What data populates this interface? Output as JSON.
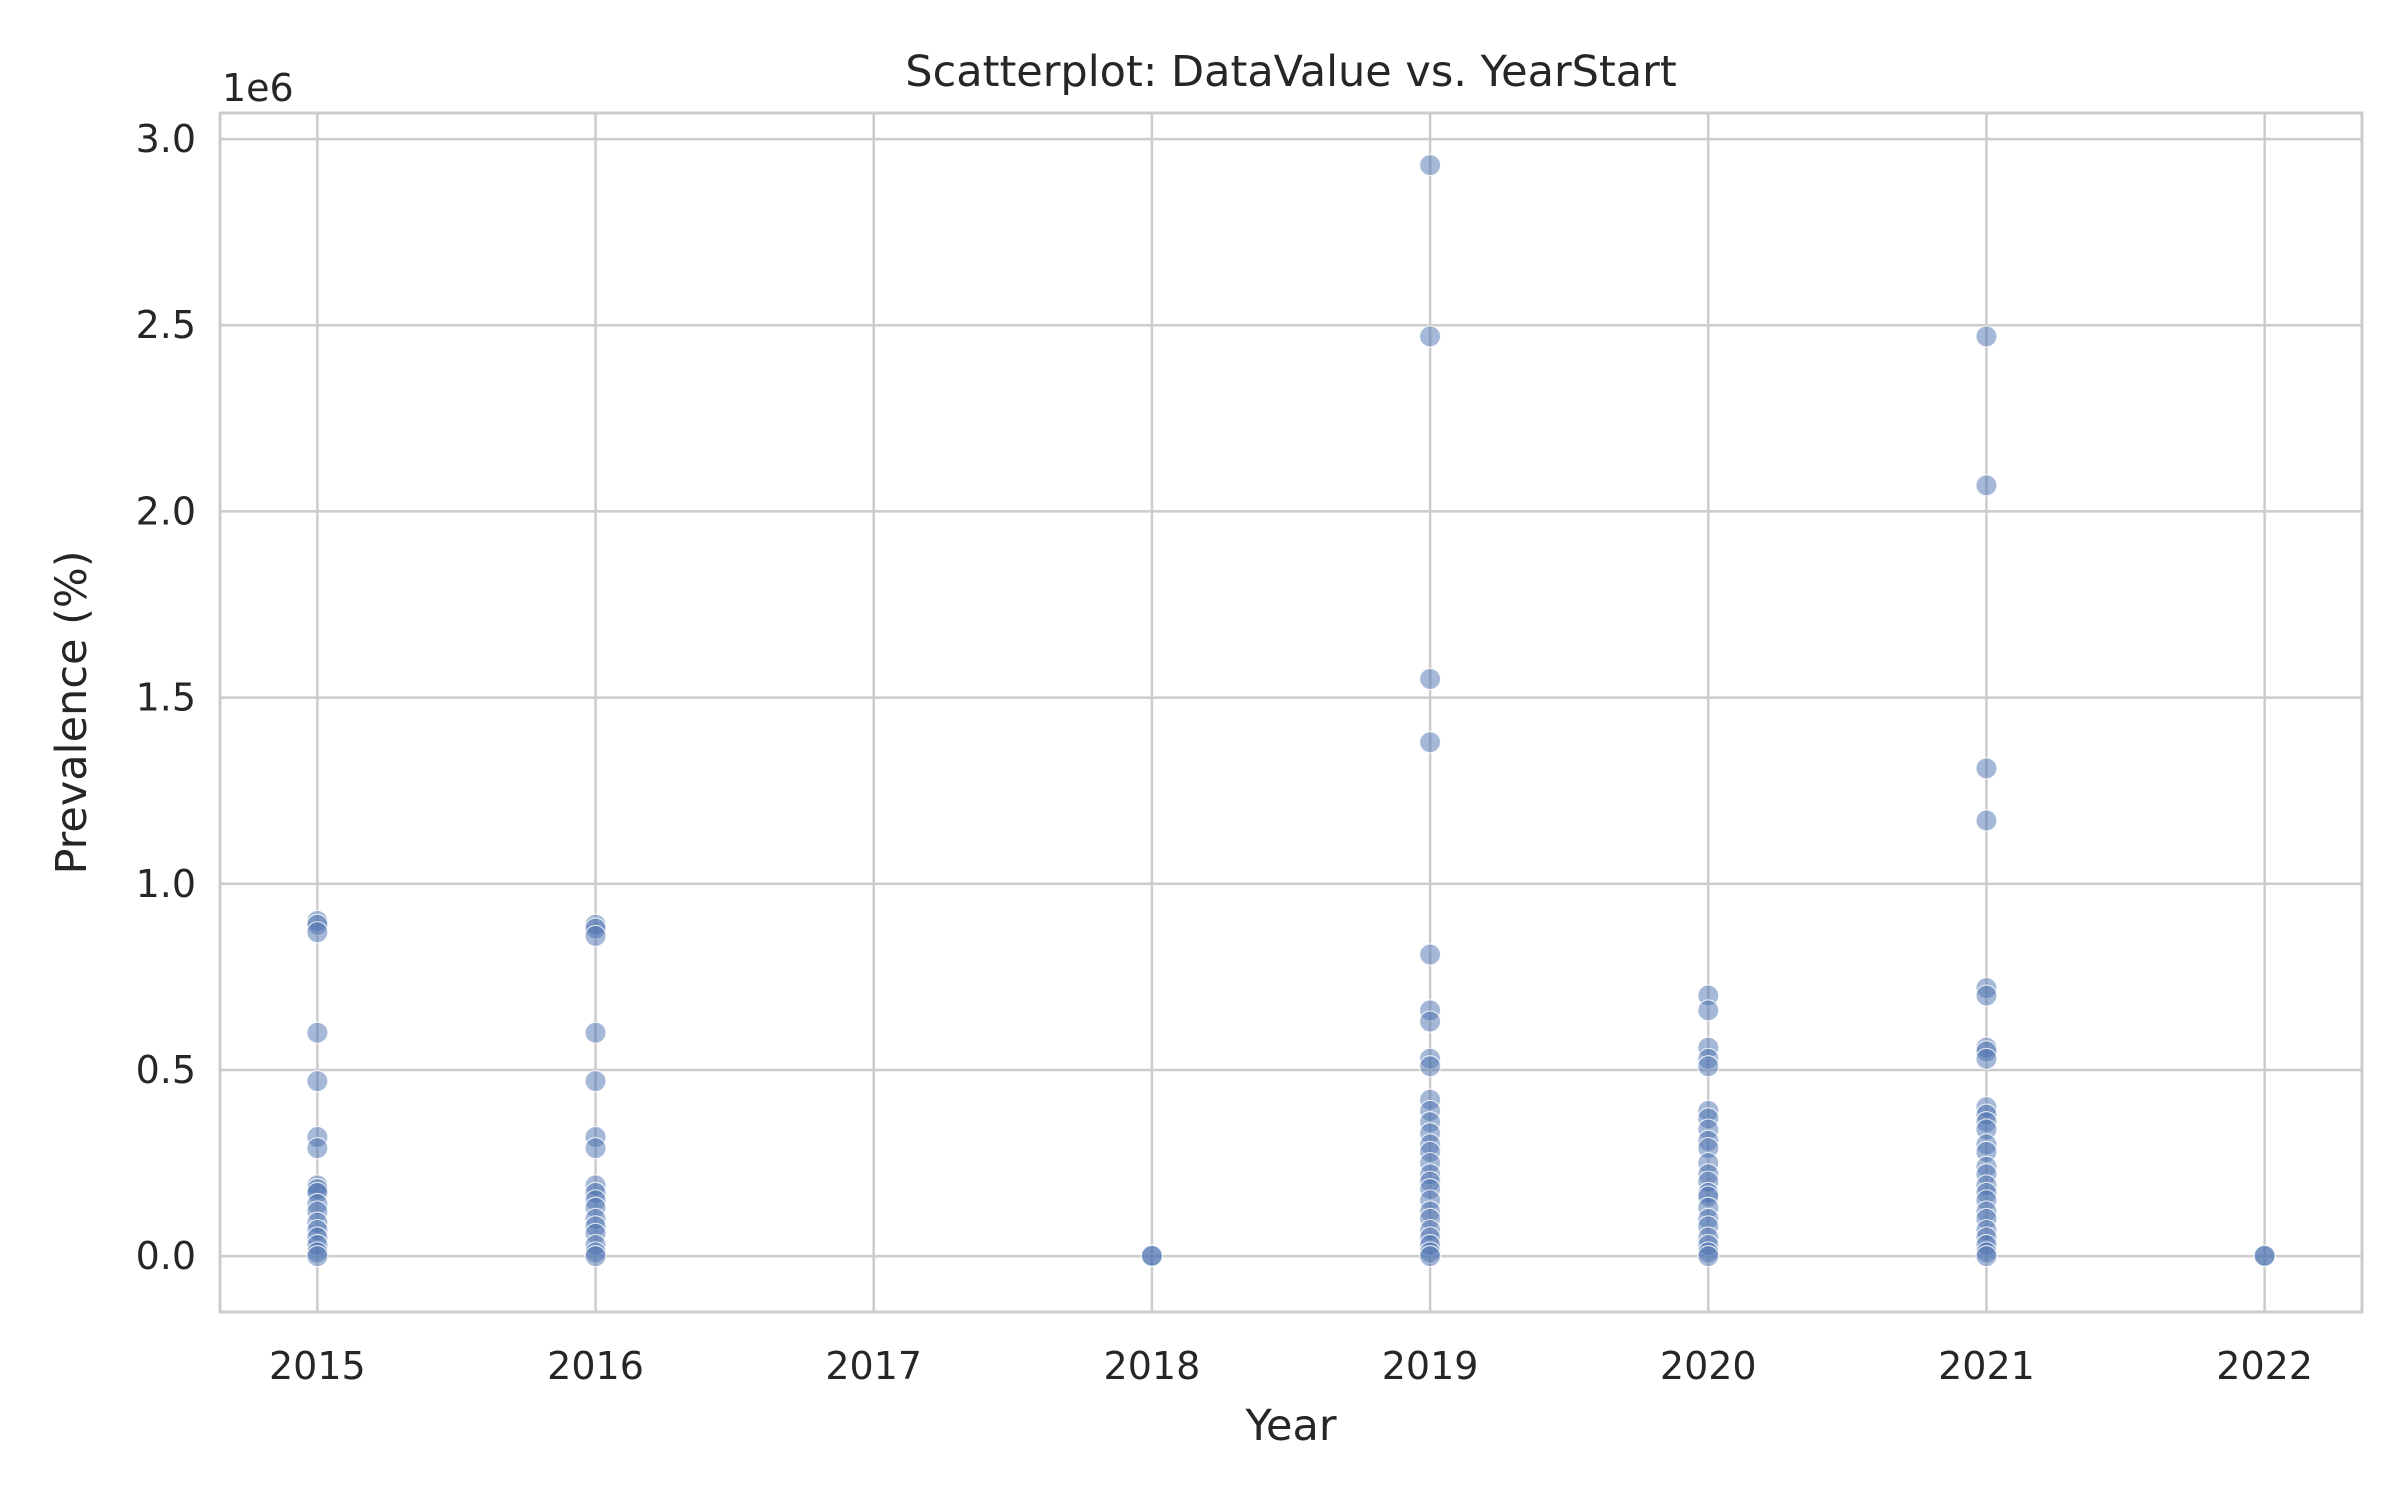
{
  "chart_data": {
    "type": "scatter",
    "title": "Scatterplot: DataValue vs. YearStart",
    "xlabel": "Year",
    "ylabel": "Prevalence (%)",
    "y_offset_label": "1e6",
    "xlim": [
      2014.65,
      2022.35
    ],
    "ylim": [
      -0.15,
      3.07
    ],
    "y_scale_factor": 1000000,
    "x_ticks": [
      2015,
      2016,
      2017,
      2018,
      2019,
      2020,
      2021,
      2022
    ],
    "x_tick_labels": [
      "2015",
      "2016",
      "2017",
      "2018",
      "2019",
      "2020",
      "2021",
      "2022"
    ],
    "y_ticks": [
      0.0,
      0.5,
      1.0,
      1.5,
      2.0,
      2.5,
      3.0
    ],
    "y_tick_labels": [
      "0.0",
      "0.5",
      "1.0",
      "1.5",
      "2.0",
      "2.5",
      "3.0"
    ],
    "grid": true,
    "legend": "none",
    "colors": {
      "marker": "#4c72b0",
      "grid": "#cccccc",
      "spine": "#cccccc",
      "text": "#262626"
    },
    "series": [
      {
        "points": [
          {
            "x": 2015,
            "y": 0.9
          },
          {
            "x": 2015,
            "y": 0.89
          },
          {
            "x": 2015,
            "y": 0.87
          },
          {
            "x": 2015,
            "y": 0.6
          },
          {
            "x": 2015,
            "y": 0.47
          },
          {
            "x": 2015,
            "y": 0.32
          },
          {
            "x": 2015,
            "y": 0.29
          },
          {
            "x": 2015,
            "y": 0.19
          },
          {
            "x": 2015,
            "y": 0.18
          },
          {
            "x": 2015,
            "y": 0.17
          },
          {
            "x": 2015,
            "y": 0.14
          },
          {
            "x": 2015,
            "y": 0.12
          },
          {
            "x": 2015,
            "y": 0.09
          },
          {
            "x": 2015,
            "y": 0.07
          },
          {
            "x": 2015,
            "y": 0.05
          },
          {
            "x": 2015,
            "y": 0.03
          },
          {
            "x": 2015,
            "y": 0.01
          },
          {
            "x": 2015,
            "y": 0.0
          },
          {
            "x": 2016,
            "y": 0.89
          },
          {
            "x": 2016,
            "y": 0.88
          },
          {
            "x": 2016,
            "y": 0.86
          },
          {
            "x": 2016,
            "y": 0.6
          },
          {
            "x": 2016,
            "y": 0.47
          },
          {
            "x": 2016,
            "y": 0.32
          },
          {
            "x": 2016,
            "y": 0.29
          },
          {
            "x": 2016,
            "y": 0.19
          },
          {
            "x": 2016,
            "y": 0.17
          },
          {
            "x": 2016,
            "y": 0.15
          },
          {
            "x": 2016,
            "y": 0.13
          },
          {
            "x": 2016,
            "y": 0.1
          },
          {
            "x": 2016,
            "y": 0.08
          },
          {
            "x": 2016,
            "y": 0.06
          },
          {
            "x": 2016,
            "y": 0.03
          },
          {
            "x": 2016,
            "y": 0.01
          },
          {
            "x": 2016,
            "y": 0.0
          },
          {
            "x": 2018,
            "y": 0.0
          },
          {
            "x": 2018,
            "y": 0.001
          },
          {
            "x": 2019,
            "y": 2.93
          },
          {
            "x": 2019,
            "y": 2.47
          },
          {
            "x": 2019,
            "y": 1.55
          },
          {
            "x": 2019,
            "y": 1.38
          },
          {
            "x": 2019,
            "y": 0.81
          },
          {
            "x": 2019,
            "y": 0.66
          },
          {
            "x": 2019,
            "y": 0.63
          },
          {
            "x": 2019,
            "y": 0.53
          },
          {
            "x": 2019,
            "y": 0.51
          },
          {
            "x": 2019,
            "y": 0.42
          },
          {
            "x": 2019,
            "y": 0.39
          },
          {
            "x": 2019,
            "y": 0.36
          },
          {
            "x": 2019,
            "y": 0.33
          },
          {
            "x": 2019,
            "y": 0.3
          },
          {
            "x": 2019,
            "y": 0.28
          },
          {
            "x": 2019,
            "y": 0.25
          },
          {
            "x": 2019,
            "y": 0.22
          },
          {
            "x": 2019,
            "y": 0.2
          },
          {
            "x": 2019,
            "y": 0.18
          },
          {
            "x": 2019,
            "y": 0.15
          },
          {
            "x": 2019,
            "y": 0.12
          },
          {
            "x": 2019,
            "y": 0.1
          },
          {
            "x": 2019,
            "y": 0.07
          },
          {
            "x": 2019,
            "y": 0.05
          },
          {
            "x": 2019,
            "y": 0.03
          },
          {
            "x": 2019,
            "y": 0.01
          },
          {
            "x": 2019,
            "y": 0.0
          },
          {
            "x": 2020,
            "y": 0.7
          },
          {
            "x": 2020,
            "y": 0.66
          },
          {
            "x": 2020,
            "y": 0.56
          },
          {
            "x": 2020,
            "y": 0.53
          },
          {
            "x": 2020,
            "y": 0.51
          },
          {
            "x": 2020,
            "y": 0.39
          },
          {
            "x": 2020,
            "y": 0.37
          },
          {
            "x": 2020,
            "y": 0.34
          },
          {
            "x": 2020,
            "y": 0.31
          },
          {
            "x": 2020,
            "y": 0.29
          },
          {
            "x": 2020,
            "y": 0.25
          },
          {
            "x": 2020,
            "y": 0.22
          },
          {
            "x": 2020,
            "y": 0.2
          },
          {
            "x": 2020,
            "y": 0.17
          },
          {
            "x": 2020,
            "y": 0.16
          },
          {
            "x": 2020,
            "y": 0.13
          },
          {
            "x": 2020,
            "y": 0.1
          },
          {
            "x": 2020,
            "y": 0.08
          },
          {
            "x": 2020,
            "y": 0.05
          },
          {
            "x": 2020,
            "y": 0.03
          },
          {
            "x": 2020,
            "y": 0.01
          },
          {
            "x": 2020,
            "y": 0.0
          },
          {
            "x": 2021,
            "y": 2.47
          },
          {
            "x": 2021,
            "y": 2.07
          },
          {
            "x": 2021,
            "y": 1.31
          },
          {
            "x": 2021,
            "y": 1.17
          },
          {
            "x": 2021,
            "y": 0.72
          },
          {
            "x": 2021,
            "y": 0.7
          },
          {
            "x": 2021,
            "y": 0.56
          },
          {
            "x": 2021,
            "y": 0.55
          },
          {
            "x": 2021,
            "y": 0.53
          },
          {
            "x": 2021,
            "y": 0.4
          },
          {
            "x": 2021,
            "y": 0.38
          },
          {
            "x": 2021,
            "y": 0.36
          },
          {
            "x": 2021,
            "y": 0.34
          },
          {
            "x": 2021,
            "y": 0.3
          },
          {
            "x": 2021,
            "y": 0.28
          },
          {
            "x": 2021,
            "y": 0.24
          },
          {
            "x": 2021,
            "y": 0.22
          },
          {
            "x": 2021,
            "y": 0.19
          },
          {
            "x": 2021,
            "y": 0.17
          },
          {
            "x": 2021,
            "y": 0.15
          },
          {
            "x": 2021,
            "y": 0.12
          },
          {
            "x": 2021,
            "y": 0.1
          },
          {
            "x": 2021,
            "y": 0.07
          },
          {
            "x": 2021,
            "y": 0.05
          },
          {
            "x": 2021,
            "y": 0.03
          },
          {
            "x": 2021,
            "y": 0.01
          },
          {
            "x": 2021,
            "y": 0.0
          },
          {
            "x": 2022,
            "y": 0.0
          },
          {
            "x": 2022,
            "y": 0.001
          }
        ]
      }
    ]
  }
}
